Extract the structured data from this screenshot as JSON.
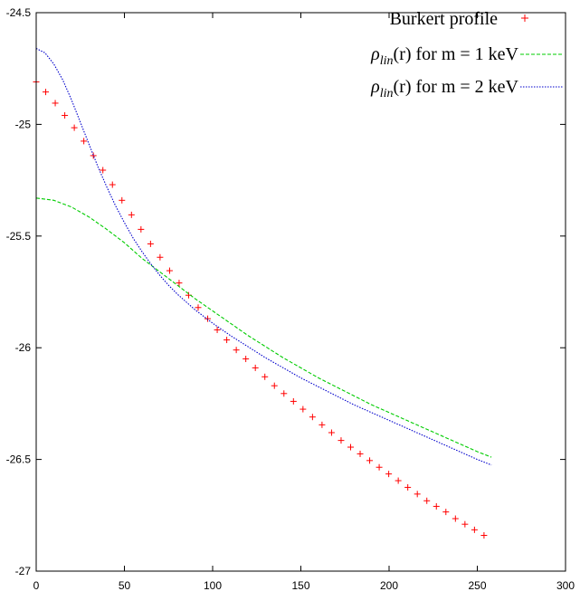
{
  "chart_data": {
    "type": "line",
    "title": "",
    "xlabel": "",
    "ylabel": "",
    "xlim": [
      0,
      300
    ],
    "ylim": [
      -27,
      -24.5
    ],
    "xticks": [
      0,
      50,
      100,
      150,
      200,
      250,
      300
    ],
    "yticks": [
      -27,
      -26.5,
      -26,
      -25.5,
      -25,
      -24.5
    ],
    "grid": false,
    "legend_position": "top-right",
    "series": [
      {
        "name": "Burkert profile",
        "style": "points",
        "marker": "plus",
        "color": "#ff0000",
        "x": [
          0,
          5.4,
          10.8,
          16.2,
          21.6,
          27,
          32.4,
          37.8,
          43.2,
          48.6,
          54,
          59.4,
          64.8,
          70.2,
          75.6,
          81,
          86.4,
          91.8,
          97.2,
          102.6,
          108,
          113.4,
          118.8,
          124.2,
          129.6,
          135,
          140.4,
          145.8,
          151.2,
          156.6,
          162,
          167.4,
          172.8,
          178.2,
          183.6,
          189,
          194.4,
          199.8,
          205.2,
          210.6,
          216,
          221.4,
          226.8,
          232.2,
          237.6,
          243,
          248.4,
          253.8
        ],
        "y": [
          -24.81,
          -24.855,
          -24.905,
          -24.96,
          -25.015,
          -25.075,
          -25.14,
          -25.205,
          -25.27,
          -25.34,
          -25.405,
          -25.47,
          -25.535,
          -25.595,
          -25.655,
          -25.71,
          -25.765,
          -25.82,
          -25.87,
          -25.92,
          -25.965,
          -26.01,
          -26.05,
          -26.09,
          -26.13,
          -26.17,
          -26.205,
          -26.24,
          -26.275,
          -26.31,
          -26.345,
          -26.38,
          -26.415,
          -26.445,
          -26.475,
          -26.505,
          -26.535,
          -26.565,
          -26.595,
          -26.625,
          -26.655,
          -26.685,
          -26.71,
          -26.735,
          -26.765,
          -26.79,
          -26.815,
          -26.84
        ]
      },
      {
        "name": "ρlin(r) for m = 1 keV",
        "style": "line",
        "dash": "dashed",
        "color": "#00cc00",
        "x": [
          0,
          10,
          20,
          30,
          40,
          50,
          60,
          70,
          80,
          90,
          100,
          110,
          120,
          130,
          140,
          150,
          160,
          170,
          180,
          190,
          200,
          210,
          220,
          230,
          240,
          250,
          258
        ],
        "y": [
          -25.33,
          -25.34,
          -25.37,
          -25.415,
          -25.47,
          -25.53,
          -25.6,
          -25.66,
          -25.72,
          -25.78,
          -25.835,
          -25.89,
          -25.945,
          -25.995,
          -26.045,
          -26.09,
          -26.135,
          -26.175,
          -26.215,
          -26.255,
          -26.29,
          -26.325,
          -26.36,
          -26.395,
          -26.43,
          -26.465,
          -26.49
        ]
      },
      {
        "name": "ρlin(r) for m = 2 keV",
        "style": "line",
        "dash": "dotted",
        "color": "#0000cc",
        "x": [
          0,
          5,
          10,
          15,
          20,
          25,
          30,
          35,
          40,
          45,
          50,
          55,
          60,
          65,
          70,
          75,
          80,
          90,
          100,
          110,
          120,
          130,
          140,
          150,
          160,
          170,
          180,
          190,
          200,
          210,
          220,
          230,
          240,
          250,
          258
        ],
        "y": [
          -24.66,
          -24.68,
          -24.73,
          -24.8,
          -24.89,
          -24.99,
          -25.09,
          -25.19,
          -25.28,
          -25.365,
          -25.44,
          -25.51,
          -25.57,
          -25.625,
          -25.675,
          -25.72,
          -25.76,
          -25.83,
          -25.89,
          -25.945,
          -25.995,
          -26.045,
          -26.09,
          -26.135,
          -26.175,
          -26.215,
          -26.255,
          -26.29,
          -26.325,
          -26.36,
          -26.395,
          -26.43,
          -26.465,
          -26.5,
          -26.525
        ]
      }
    ]
  },
  "legend": {
    "burkert": "Burkert profile",
    "m1": {
      "rho": "ρ",
      "sub": "lin",
      "rest": "(r) for m = 1 keV"
    },
    "m2": {
      "rho": "ρ",
      "sub": "lin",
      "rest": "(r) for m = 2 keV"
    }
  }
}
